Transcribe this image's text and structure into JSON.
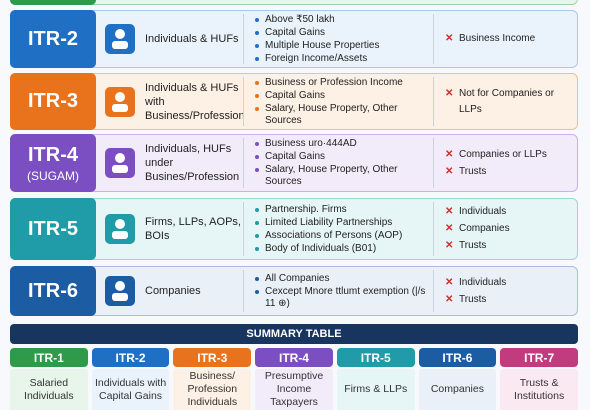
{
  "rows": [
    {
      "form": "ITR-2",
      "color": "#1f6fc5",
      "bg": "#eaf3fc",
      "border": "#a9c9ec",
      "who": "Individuals & HUFs",
      "items": [
        "Above ₹50 lakh",
        "Capital Gains",
        "Multiple House Properties",
        "Foreign Income/Assets"
      ],
      "not_for": [
        "Business Income"
      ]
    },
    {
      "form": "ITR-3",
      "color": "#e8731c",
      "bg": "#fdf0e4",
      "border": "#f2bf94",
      "who": "Individuals & HUFs with Business/Profession",
      "items": [
        "Business or Profession Income",
        "Capital Gains",
        "Salary, House Property, Other Sources"
      ],
      "not_for": [
        "Not for Companies or LLPs"
      ]
    },
    {
      "form": "ITR-4",
      "sub": "(SUGAM)",
      "color": "#7b4fc1",
      "bg": "#f2ecfa",
      "border": "#c7b3e8",
      "who": "Individuals, HUFs under Busines/Profession",
      "items": [
        "Business uro·444AD",
        "Capital Gains",
        "Salary, House Property, Other Sources"
      ],
      "not_for": [
        "Companies or LLPs",
        "Trusts"
      ]
    },
    {
      "form": "ITR-5",
      "color": "#1f9ca8",
      "bg": "#e6f5f6",
      "border": "#9fd4d9",
      "who": "Firms, LLPs, AOPs, BOIs",
      "items": [
        "Partnership. Firms",
        "Limited Liability Partnerships",
        "Associations of Persons (AOP)",
        "Body of Individuals (B01)"
      ],
      "not_for": [
        "Individuals",
        "Companies",
        "Trusts"
      ]
    },
    {
      "form": "ITR-6",
      "color": "#1b5ca3",
      "bg": "#e9f0f8",
      "border": "#a7c0de",
      "who": "Companies",
      "items": [
        "All Companies",
        "Cexcept Mnore ttlumt exemption (|/s 11 ⊕)"
      ],
      "not_for": [
        "Individuals",
        "Trusts"
      ]
    }
  ],
  "summary": {
    "title": "SUMMARY TABLE",
    "columns": [
      {
        "form": "ITR-1",
        "text": "Salaried Individuals",
        "color": "#2e9a4a",
        "bg": "#e8f5ea"
      },
      {
        "form": "ITR-2",
        "text": "Individuals with Capital Gains",
        "color": "#1f6fc5",
        "bg": "#eaf3fc"
      },
      {
        "form": "ITR-3",
        "text": "Business/ Profession Individuals",
        "color": "#e8731c",
        "bg": "#fdf0e4"
      },
      {
        "form": "ITR-4",
        "text": "Presumptive Income Taxpayers",
        "color": "#7b4fc1",
        "bg": "#f2ecfa"
      },
      {
        "form": "ITR-5",
        "text": "Firms & LLPs",
        "color": "#1f9ca8",
        "bg": "#e6f5f6"
      },
      {
        "form": "ITR-6",
        "text": "Companies",
        "color": "#1b5ca3",
        "bg": "#e9f0f8"
      },
      {
        "form": "ITR-7",
        "text": "Trusts & Institutions",
        "color": "#c23b7e",
        "bg": "#fbe9f2"
      }
    ]
  }
}
